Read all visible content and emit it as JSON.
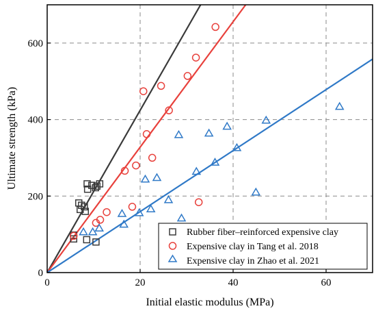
{
  "chart_data": {
    "type": "scatter",
    "xlabel": "Initial elastic modulus (MPa)",
    "ylabel": "Ultimate strength (kPa)",
    "xlim": [
      0,
      70
    ],
    "ylim": [
      0,
      700
    ],
    "xticks": [
      0,
      20,
      40,
      60
    ],
    "yticks": [
      0,
      200,
      400,
      600
    ],
    "grid": "dashed",
    "legend_position": "bottom-right",
    "series": [
      {
        "name": "Rubber fiber–reinforced expensive clay",
        "marker": "square",
        "color": "#3a3a3a",
        "points": [
          [
            5.7,
            98
          ],
          [
            5.7,
            88
          ],
          [
            6.8,
            182
          ],
          [
            7.1,
            165
          ],
          [
            7.4,
            176
          ],
          [
            8.0,
            172
          ],
          [
            8.2,
            160
          ],
          [
            8.6,
            232
          ],
          [
            8.7,
            218
          ],
          [
            9.6,
            228
          ],
          [
            10.4,
            222
          ],
          [
            10.7,
            226
          ],
          [
            11.3,
            232
          ],
          [
            8.5,
            86
          ],
          [
            10.5,
            80
          ]
        ],
        "fit": [
          [
            0,
            0
          ],
          [
            33,
            700
          ]
        ]
      },
      {
        "name": "Expensive clay in Tang et al. 2018",
        "marker": "circle",
        "color": "#e8413c",
        "points": [
          [
            5.7,
            96
          ],
          [
            10.5,
            130
          ],
          [
            11.4,
            138
          ],
          [
            12.8,
            158
          ],
          [
            16.7,
            266
          ],
          [
            18.3,
            172
          ],
          [
            19.1,
            280
          ],
          [
            20.7,
            474
          ],
          [
            21.4,
            362
          ],
          [
            22.6,
            300
          ],
          [
            24.5,
            488
          ],
          [
            26.2,
            424
          ],
          [
            30.2,
            514
          ],
          [
            32.0,
            562
          ],
          [
            32.6,
            184
          ],
          [
            36.2,
            642
          ]
        ],
        "fit": [
          [
            0,
            0
          ],
          [
            42.7,
            700
          ]
        ]
      },
      {
        "name": "Expensive clay in Zhao et al. 2021",
        "marker": "triangle",
        "color": "#2f79c7",
        "points": [
          [
            7.8,
            106
          ],
          [
            9.8,
            106
          ],
          [
            11.2,
            116
          ],
          [
            16.1,
            154
          ],
          [
            16.5,
            126
          ],
          [
            19.8,
            156
          ],
          [
            21.1,
            244
          ],
          [
            22.3,
            166
          ],
          [
            23.6,
            248
          ],
          [
            26.1,
            190
          ],
          [
            28.3,
            360
          ],
          [
            28.9,
            142
          ],
          [
            32.1,
            264
          ],
          [
            34.8,
            364
          ],
          [
            36.1,
            288
          ],
          [
            38.7,
            382
          ],
          [
            40.8,
            326
          ],
          [
            44.9,
            210
          ],
          [
            47.1,
            398
          ],
          [
            62.9,
            434
          ]
        ],
        "fit": [
          [
            0,
            0
          ],
          [
            70,
            558
          ]
        ]
      }
    ]
  }
}
